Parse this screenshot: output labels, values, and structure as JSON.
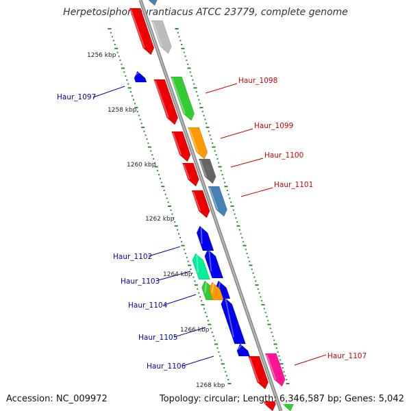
{
  "title": "Herpetosiphon aurantiacus ATCC 23779, complete genome",
  "accession": "Accession: NC_009972",
  "summary": "Topology: circular; Length: 6,346,587 bp; Genes: 5,042",
  "kbp_ticks": [
    {
      "label": "1256 kbp",
      "kbp": 1256
    },
    {
      "label": "1258 kbp",
      "kbp": 1258
    },
    {
      "label": "1260 kbp",
      "kbp": 1260
    },
    {
      "label": "1262 kbp",
      "kbp": 1262
    },
    {
      "label": "1264 kbp",
      "kbp": 1264
    },
    {
      "label": "1266 kbp",
      "kbp": 1266
    },
    {
      "label": "1268 kbp",
      "kbp": 1268
    }
  ],
  "labels": [
    {
      "text": "Haur_1097",
      "strand": "reverse",
      "color": "#0000aa"
    },
    {
      "text": "Haur_1098",
      "strand": "forward",
      "color": "#cc0000"
    },
    {
      "text": "Haur_1099",
      "strand": "forward",
      "color": "#cc0000"
    },
    {
      "text": "Haur_1100",
      "strand": "forward",
      "color": "#cc0000"
    },
    {
      "text": "Haur_1101",
      "strand": "forward",
      "color": "#cc0000"
    },
    {
      "text": "Haur_1102",
      "strand": "reverse",
      "color": "#0000aa"
    },
    {
      "text": "Haur_1103",
      "strand": "reverse",
      "color": "#0000aa"
    },
    {
      "text": "Haur_1104",
      "strand": "reverse",
      "color": "#0000aa"
    },
    {
      "text": "Haur_1105",
      "strand": "reverse",
      "color": "#0000aa"
    },
    {
      "text": "Haur_1106",
      "strand": "reverse",
      "color": "#0000aa"
    },
    {
      "text": "Haur_1107",
      "strand": "forward",
      "color": "#cc0000"
    }
  ],
  "colors": {
    "backbone": "#8c8c8c",
    "forward_cds": "#ee0000",
    "reverse_cds": "#0000ee",
    "tick_dots": "#2e8b2e"
  }
}
